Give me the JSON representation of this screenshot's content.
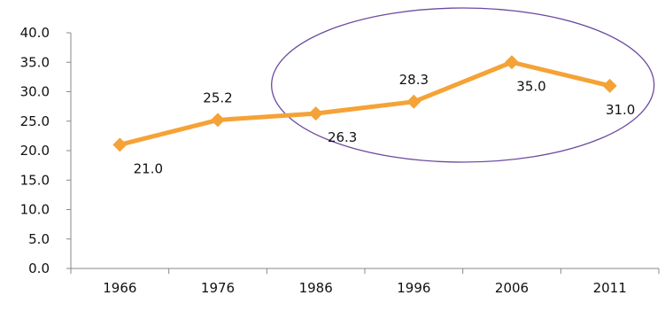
{
  "chart_data": {
    "type": "line",
    "categories": [
      "1966",
      "1976",
      "1986",
      "1996",
      "2006",
      "2011"
    ],
    "series": [
      {
        "values": [
          21.0,
          25.2,
          26.3,
          28.3,
          35.0,
          31.0
        ]
      }
    ],
    "data_labels": [
      "21.0",
      "25.2",
      "26.3",
      "28.3",
      "35.0",
      "31.0"
    ],
    "y_ticks": [
      "0.0",
      "5.0",
      "10.0",
      "15.0",
      "20.0",
      "25.0",
      "30.0",
      "35.0",
      "40.0"
    ],
    "ylim": [
      0,
      40
    ],
    "grid": false,
    "legend": "none",
    "title": "",
    "xlabel": "",
    "ylabel": "",
    "highlight": {
      "shape": "ellipse",
      "encloses_categories": [
        "1986",
        "1996",
        "2006",
        "2011"
      ]
    },
    "colors": {
      "line": "#F5A236",
      "marker": "#F5A236",
      "axis": "#888888",
      "highlight": "#6A4AA0"
    }
  }
}
